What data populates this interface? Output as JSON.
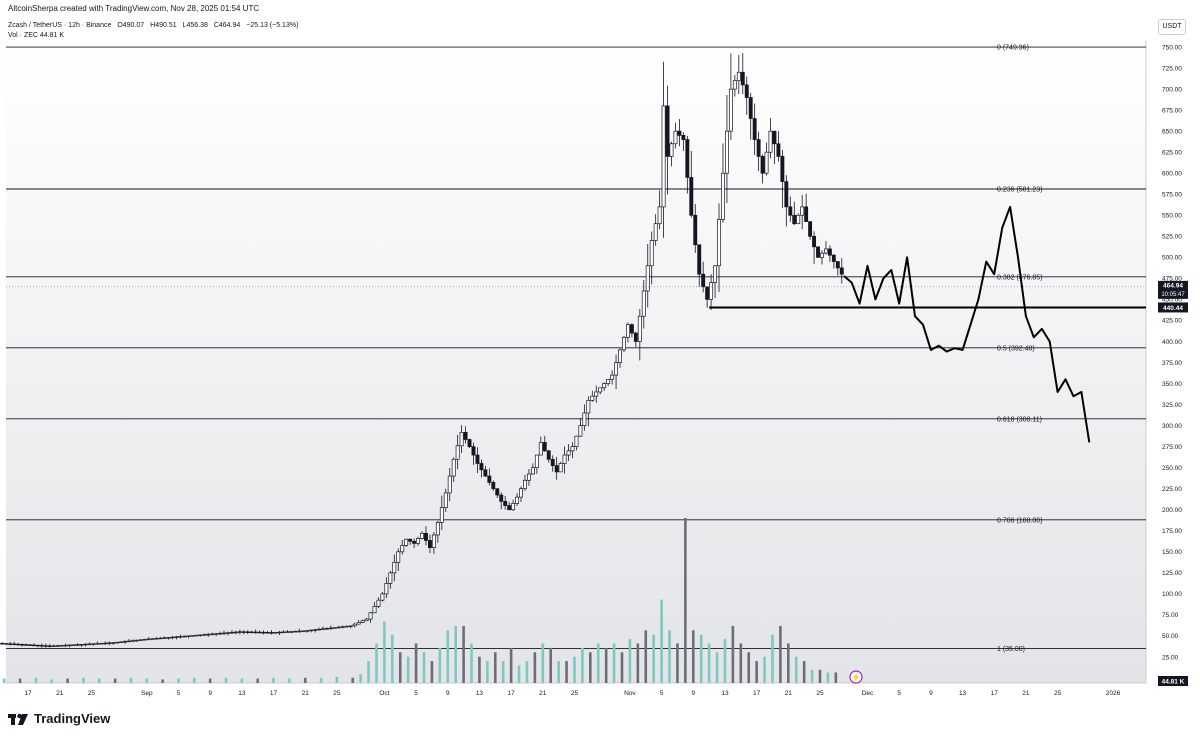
{
  "header": {
    "created_by": "AltcoinSherpa created with TradingView.com, Nov 28, 2025 01:54 UTC",
    "symbol": "Zcash / TetherUS · 12h · Binance",
    "open": "O490.07",
    "high": "H490.51",
    "low": "L456.38",
    "close": "C464.94",
    "change": "−25.13 (−5.13%)",
    "vol_label": "Vol · ZEC",
    "vol_value": "44.81 K"
  },
  "currency": "USDT",
  "brand": "TradingView",
  "price_tags": {
    "last": "464.94",
    "countdown": "10:05:47",
    "support": "440.44",
    "volume": "44.81 K"
  },
  "colors": {
    "up": "#ffffff",
    "down": "#131722",
    "vol_up": "#7ec8c2",
    "vol_down": "#6b6e77",
    "fib_line": "#131722",
    "tag_bg": "#131722"
  },
  "chart_data": {
    "type": "candlestick",
    "y_axis": {
      "min": 0,
      "max": 750,
      "ticks": [
        "750.00",
        "725.00",
        "700.00",
        "675.00",
        "650.00",
        "625.00",
        "600.00",
        "575.00",
        "550.00",
        "525.00",
        "500.00",
        "475.00",
        "450.00",
        "425.00",
        "400.00",
        "375.00",
        "350.00",
        "325.00",
        "300.00",
        "275.00",
        "250.00",
        "225.00",
        "200.00",
        "175.00",
        "150.00",
        "125.00",
        "100.00",
        "75.00",
        "50.00",
        "25.00",
        "0.00"
      ]
    },
    "x_axis": {
      "ticks": [
        {
          "label": "17",
          "day": 17
        },
        {
          "label": "21",
          "day": 21
        },
        {
          "label": "25",
          "day": 25
        },
        {
          "label": "Sep",
          "day": 32
        },
        {
          "label": "5",
          "day": 36
        },
        {
          "label": "9",
          "day": 40
        },
        {
          "label": "13",
          "day": 44
        },
        {
          "label": "17",
          "day": 48
        },
        {
          "label": "21",
          "day": 52
        },
        {
          "label": "25",
          "day": 56
        },
        {
          "label": "Oct",
          "day": 62
        },
        {
          "label": "5",
          "day": 66
        },
        {
          "label": "9",
          "day": 70
        },
        {
          "label": "13",
          "day": 74
        },
        {
          "label": "17",
          "day": 78
        },
        {
          "label": "21",
          "day": 82
        },
        {
          "label": "25",
          "day": 86
        },
        {
          "label": "Nov",
          "day": 93
        },
        {
          "label": "5",
          "day": 97
        },
        {
          "label": "9",
          "day": 101
        },
        {
          "label": "13",
          "day": 105
        },
        {
          "label": "17",
          "day": 109
        },
        {
          "label": "21",
          "day": 113
        },
        {
          "label": "25",
          "day": 117
        },
        {
          "label": "Dec",
          "day": 123
        },
        {
          "label": "5",
          "day": 127
        },
        {
          "label": "9",
          "day": 131
        },
        {
          "label": "13",
          "day": 135
        },
        {
          "label": "17",
          "day": 139
        },
        {
          "label": "21",
          "day": 143
        },
        {
          "label": "25",
          "day": 147
        },
        {
          "label": "2026",
          "day": 154
        }
      ]
    },
    "fib_levels": [
      {
        "label": "0 (749.96)",
        "value": 749.96
      },
      {
        "label": "0.236 (581.23)",
        "value": 581.23
      },
      {
        "label": "0.382 (476.85)",
        "value": 476.85
      },
      {
        "label": "0.5 (392.48)",
        "value": 392.48
      },
      {
        "label": "0.618 (308.11)",
        "value": 308.11
      },
      {
        "label": "0.786 (188.00)",
        "value": 188.0
      },
      {
        "label": "1 (35.00)",
        "value": 35.0
      }
    ],
    "support_level": 440.44,
    "last_price": 464.94,
    "price_path": [
      [
        0,
        37
      ],
      [
        8,
        38
      ],
      [
        12,
        42
      ],
      [
        16,
        40
      ],
      [
        20,
        38
      ],
      [
        24,
        40
      ],
      [
        28,
        42
      ],
      [
        32,
        46
      ],
      [
        36,
        49
      ],
      [
        40,
        52
      ],
      [
        44,
        55
      ],
      [
        48,
        54
      ],
      [
        52,
        56
      ],
      [
        56,
        60
      ],
      [
        58,
        62
      ],
      [
        60,
        70
      ],
      [
        61,
        85
      ],
      [
        62,
        100
      ],
      [
        63,
        125
      ],
      [
        64,
        150
      ],
      [
        65,
        165
      ],
      [
        66,
        160
      ],
      [
        67,
        172
      ],
      [
        68,
        155
      ],
      [
        69,
        185
      ],
      [
        70,
        220
      ],
      [
        71,
        260
      ],
      [
        72,
        292
      ],
      [
        73,
        275
      ],
      [
        74,
        255
      ],
      [
        75,
        240
      ],
      [
        76,
        225
      ],
      [
        77,
        210
      ],
      [
        78,
        200
      ],
      [
        79,
        215
      ],
      [
        80,
        235
      ],
      [
        81,
        250
      ],
      [
        82,
        280
      ],
      [
        83,
        260
      ],
      [
        84,
        245
      ],
      [
        85,
        265
      ],
      [
        86,
        275
      ],
      [
        87,
        300
      ],
      [
        88,
        330
      ],
      [
        89,
        340
      ],
      [
        90,
        350
      ],
      [
        91,
        360
      ],
      [
        92,
        390
      ],
      [
        93,
        420
      ],
      [
        94,
        400
      ],
      [
        95,
        460
      ],
      [
        96,
        520
      ],
      [
        97,
        560
      ],
      [
        97.5,
        680
      ],
      [
        98,
        620
      ],
      [
        99,
        650
      ],
      [
        100,
        640
      ],
      [
        101,
        550
      ],
      [
        102,
        480
      ],
      [
        103,
        450
      ],
      [
        104,
        490
      ],
      [
        105,
        600
      ],
      [
        106,
        700
      ],
      [
        107,
        720
      ],
      [
        108,
        690
      ],
      [
        109,
        640
      ],
      [
        110,
        600
      ],
      [
        111,
        650
      ],
      [
        112,
        620
      ],
      [
        113,
        560
      ],
      [
        114,
        540
      ],
      [
        115,
        560
      ],
      [
        116,
        525
      ],
      [
        117,
        500
      ],
      [
        118,
        510
      ],
      [
        119,
        495
      ],
      [
        120,
        480
      ]
    ],
    "forecast_path": [
      [
        120,
        478
      ],
      [
        121,
        470
      ],
      [
        122,
        445
      ],
      [
        123,
        490
      ],
      [
        124,
        450
      ],
      [
        125,
        475
      ],
      [
        126,
        485
      ],
      [
        127,
        445
      ],
      [
        128,
        500
      ],
      [
        129,
        430
      ],
      [
        130,
        420
      ],
      [
        131,
        390
      ],
      [
        132,
        395
      ],
      [
        133,
        388
      ],
      [
        134,
        392
      ],
      [
        135,
        390
      ],
      [
        136,
        420
      ],
      [
        137,
        450
      ],
      [
        138,
        495
      ],
      [
        139,
        480
      ],
      [
        140,
        535
      ],
      [
        141,
        560
      ],
      [
        142,
        500
      ],
      [
        143,
        430
      ],
      [
        144,
        405
      ],
      [
        145,
        415
      ],
      [
        146,
        400
      ],
      [
        147,
        340
      ],
      [
        148,
        355
      ],
      [
        149,
        335
      ],
      [
        150,
        340
      ],
      [
        151,
        280
      ]
    ],
    "volume": [
      [
        0,
        5,
        1
      ],
      [
        2,
        4,
        1
      ],
      [
        4,
        5,
        0
      ],
      [
        6,
        4,
        1
      ],
      [
        8,
        5,
        1
      ],
      [
        10,
        4,
        0
      ],
      [
        12,
        6,
        1
      ],
      [
        14,
        5,
        1
      ],
      [
        16,
        5,
        0
      ],
      [
        18,
        6,
        1
      ],
      [
        20,
        4,
        1
      ],
      [
        22,
        5,
        0
      ],
      [
        24,
        6,
        1
      ],
      [
        26,
        5,
        1
      ],
      [
        28,
        5,
        0
      ],
      [
        30,
        6,
        1
      ],
      [
        32,
        5,
        1
      ],
      [
        34,
        4,
        0
      ],
      [
        36,
        5,
        1
      ],
      [
        38,
        6,
        1
      ],
      [
        40,
        5,
        0
      ],
      [
        42,
        6,
        1
      ],
      [
        44,
        5,
        1
      ],
      [
        46,
        5,
        0
      ],
      [
        48,
        6,
        1
      ],
      [
        50,
        5,
        1
      ],
      [
        52,
        6,
        0
      ],
      [
        54,
        6,
        1
      ],
      [
        56,
        7,
        1
      ],
      [
        58,
        6,
        0
      ],
      [
        59,
        10,
        1
      ],
      [
        60,
        25,
        1
      ],
      [
        61,
        45,
        1
      ],
      [
        62,
        70,
        1
      ],
      [
        63,
        55,
        1
      ],
      [
        64,
        35,
        0
      ],
      [
        65,
        30,
        1
      ],
      [
        66,
        45,
        0
      ],
      [
        67,
        35,
        1
      ],
      [
        68,
        25,
        0
      ],
      [
        69,
        40,
        1
      ],
      [
        70,
        60,
        1
      ],
      [
        71,
        65,
        1
      ],
      [
        72,
        65,
        0
      ],
      [
        73,
        45,
        1
      ],
      [
        74,
        30,
        0
      ],
      [
        75,
        25,
        1
      ],
      [
        76,
        35,
        0
      ],
      [
        77,
        25,
        1
      ],
      [
        78,
        40,
        0
      ],
      [
        79,
        20,
        1
      ],
      [
        80,
        25,
        1
      ],
      [
        81,
        35,
        0
      ],
      [
        82,
        45,
        1
      ],
      [
        83,
        40,
        0
      ],
      [
        84,
        25,
        1
      ],
      [
        85,
        25,
        0
      ],
      [
        86,
        30,
        1
      ],
      [
        87,
        40,
        1
      ],
      [
        88,
        35,
        0
      ],
      [
        89,
        45,
        1
      ],
      [
        90,
        40,
        0
      ],
      [
        91,
        45,
        1
      ],
      [
        92,
        35,
        0
      ],
      [
        93,
        50,
        1
      ],
      [
        94,
        45,
        0
      ],
      [
        95,
        60,
        0
      ],
      [
        96,
        55,
        1
      ],
      [
        97,
        95,
        1
      ],
      [
        98,
        60,
        1
      ],
      [
        99,
        45,
        0
      ],
      [
        100,
        188,
        0
      ],
      [
        101,
        60,
        0
      ],
      [
        102,
        55,
        1
      ],
      [
        103,
        45,
        1
      ],
      [
        104,
        35,
        1
      ],
      [
        105,
        50,
        1
      ],
      [
        106,
        65,
        0
      ],
      [
        107,
        45,
        0
      ],
      [
        108,
        35,
        0
      ],
      [
        109,
        25,
        0
      ],
      [
        110,
        30,
        1
      ],
      [
        111,
        55,
        1
      ],
      [
        112,
        65,
        0
      ],
      [
        113,
        45,
        0
      ],
      [
        114,
        30,
        1
      ],
      [
        115,
        25,
        0
      ],
      [
        116,
        15,
        1
      ],
      [
        117,
        15,
        0
      ],
      [
        118,
        12,
        1
      ],
      [
        119,
        12,
        0
      ]
    ]
  }
}
